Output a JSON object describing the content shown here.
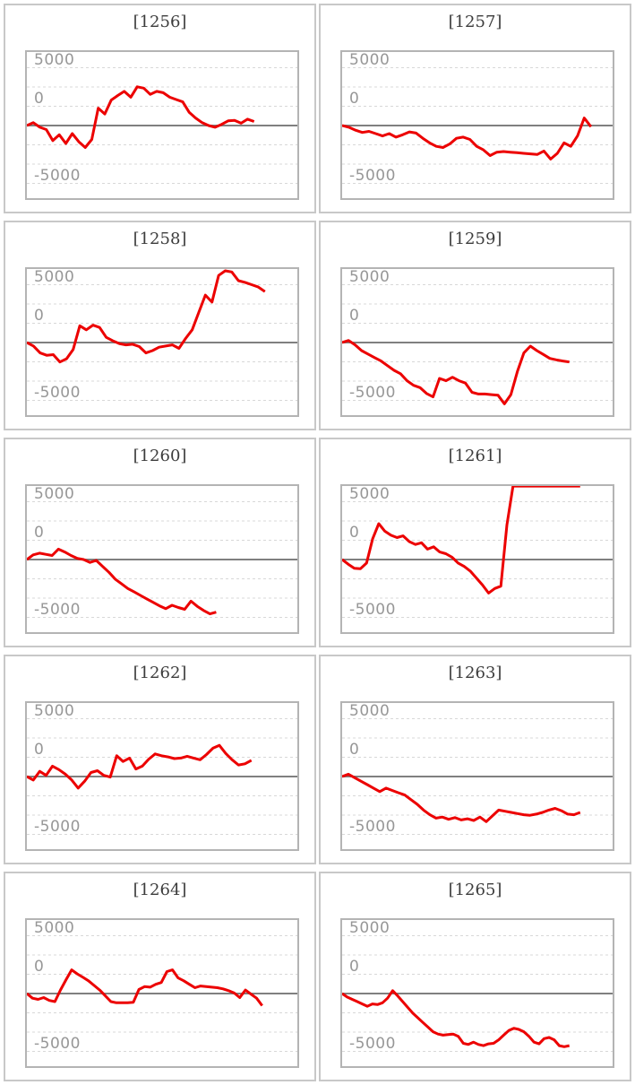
{
  "page": {
    "background": "#ffffff"
  },
  "style": {
    "line_color": "#ec0000",
    "zero_line_color": "#808080",
    "gridline_color": "#d8d8d8",
    "plot_border_color": "#b4b4b4",
    "tile_border_color": "#c8c8c8",
    "title_color": "#3c3c3c",
    "tick_label_color": "#979797"
  },
  "axis": {
    "tick_labels": [
      "5000",
      "0",
      "-5000"
    ]
  },
  "chart_data": [
    {
      "type": "line",
      "title": "[1256]",
      "machine_no": "1256",
      "xlabel": "",
      "ylabel": "",
      "grid": true,
      "legend": "none",
      "ylim": [
        -6350,
        6350
      ],
      "yticks": [
        5000,
        0,
        -5000
      ],
      "x_end_fraction": 0.84,
      "values": [
        0,
        250,
        -150,
        -350,
        -1300,
        -800,
        -1550,
        -700,
        -1400,
        -1900,
        -1200,
        1500,
        1000,
        2200,
        2600,
        2950,
        2450,
        3350,
        3230,
        2700,
        2950,
        2840,
        2450,
        2250,
        2050,
        1150,
        650,
        250,
        0,
        -150,
        100,
        400,
        450,
        200,
        550,
        350
      ]
    },
    {
      "type": "line",
      "title": "[1257]",
      "machine_no": "1257",
      "xlabel": "",
      "ylabel": "",
      "grid": true,
      "legend": "none",
      "ylim": [
        -6350,
        6350
      ],
      "yticks": [
        5000,
        0,
        -5000
      ],
      "x_end_fraction": 0.92,
      "values": [
        0,
        -150,
        -400,
        -600,
        -500,
        -700,
        -900,
        -700,
        -1000,
        -800,
        -550,
        -650,
        -1100,
        -1500,
        -1800,
        -1900,
        -1600,
        -1100,
        -1000,
        -1200,
        -1800,
        -2100,
        -2600,
        -2300,
        -2250,
        -2300,
        -2350,
        -2400,
        -2450,
        -2500,
        -2200,
        -2900,
        -2400,
        -1500,
        -1800,
        -900,
        650,
        -100
      ]
    },
    {
      "type": "line",
      "title": "[1258]",
      "machine_no": "1258",
      "xlabel": "",
      "ylabel": "",
      "grid": true,
      "legend": "none",
      "ylim": [
        -6350,
        6350
      ],
      "yticks": [
        5000,
        0,
        -5000
      ],
      "x_end_fraction": 0.88,
      "values": [
        0,
        -300,
        -900,
        -1100,
        -1050,
        -1680,
        -1400,
        -600,
        1450,
        1100,
        1500,
        1300,
        450,
        150,
        -100,
        -200,
        -150,
        -350,
        -900,
        -700,
        -400,
        -300,
        -200,
        -500,
        350,
        1100,
        2600,
        4100,
        3500,
        5800,
        6200,
        6100,
        5350,
        5200,
        5000,
        4800,
        4400
      ]
    },
    {
      "type": "line",
      "title": "[1259]",
      "machine_no": "1259",
      "xlabel": "",
      "ylabel": "",
      "grid": true,
      "legend": "none",
      "ylim": [
        -6350,
        6350
      ],
      "yticks": [
        5000,
        0,
        -5000
      ],
      "x_end_fraction": 0.84,
      "values": [
        0,
        180,
        -200,
        -700,
        -1000,
        -1300,
        -1600,
        -2000,
        -2400,
        -2700,
        -3300,
        -3700,
        -3900,
        -4400,
        -4700,
        -3100,
        -3300,
        -3000,
        -3300,
        -3500,
        -4300,
        -4450,
        -4450,
        -4500,
        -4550,
        -5300,
        -4500,
        -2500,
        -900,
        -310,
        -700,
        -1030,
        -1370,
        -1500,
        -1600,
        -1680
      ]
    },
    {
      "type": "line",
      "title": "[1260]",
      "machine_no": "1260",
      "xlabel": "",
      "ylabel": "",
      "grid": true,
      "legend": "none",
      "ylim": [
        -6350,
        6350
      ],
      "yticks": [
        5000,
        0,
        -5000
      ],
      "x_end_fraction": 0.7,
      "values": [
        0,
        400,
        550,
        450,
        350,
        900,
        650,
        350,
        100,
        0,
        -250,
        -80,
        -600,
        -1100,
        -1700,
        -2100,
        -2500,
        -2800,
        -3100,
        -3400,
        -3700,
        -4000,
        -4250,
        -3950,
        -4150,
        -4300,
        -3600,
        -4050,
        -4400,
        -4700,
        -4550
      ]
    },
    {
      "type": "line",
      "title": "[1261]",
      "machine_no": "1261",
      "xlabel": "",
      "ylabel": "",
      "grid": true,
      "legend": "none",
      "ylim": [
        -6350,
        6350
      ],
      "yticks": [
        5000,
        0,
        -5000
      ],
      "x_end_fraction": 0.88,
      "values": [
        0,
        -400,
        -750,
        -800,
        -300,
        1800,
        3100,
        2450,
        2100,
        1900,
        2050,
        1550,
        1300,
        1450,
        900,
        1100,
        650,
        500,
        200,
        -300,
        -600,
        -1000,
        -1600,
        -2200,
        -2900,
        -2500,
        -2300,
        3000,
        6350,
        6350,
        6350,
        6350,
        6350,
        6350,
        6350,
        6350,
        6350,
        6350,
        6350,
        6350
      ]
    },
    {
      "type": "line",
      "title": "[1262]",
      "machine_no": "1262",
      "xlabel": "",
      "ylabel": "",
      "grid": true,
      "legend": "none",
      "ylim": [
        -6350,
        6350
      ],
      "yticks": [
        5000,
        0,
        -5000
      ],
      "x_end_fraction": 0.83,
      "values": [
        0,
        -300,
        450,
        100,
        900,
        600,
        200,
        -300,
        -1000,
        -400,
        350,
        500,
        100,
        -50,
        1800,
        1300,
        1600,
        650,
        900,
        1500,
        1950,
        1800,
        1700,
        1550,
        1600,
        1750,
        1600,
        1450,
        1900,
        2450,
        2700,
        2000,
        1450,
        1000,
        1100,
        1400
      ]
    },
    {
      "type": "line",
      "title": "[1263]",
      "machine_no": "1263",
      "xlabel": "",
      "ylabel": "",
      "grid": true,
      "legend": "none",
      "ylim": [
        -6350,
        6350
      ],
      "yticks": [
        5000,
        0,
        -5000
      ],
      "x_end_fraction": 0.88,
      "values": [
        0,
        200,
        -100,
        -400,
        -700,
        -1000,
        -1300,
        -1000,
        -1200,
        -1400,
        -1600,
        -2000,
        -2400,
        -2900,
        -3300,
        -3600,
        -3500,
        -3700,
        -3550,
        -3750,
        -3650,
        -3800,
        -3500,
        -3900,
        -3400,
        -2900,
        -3000,
        -3100,
        -3200,
        -3300,
        -3350,
        -3250,
        -3100,
        -2900,
        -2750,
        -2950,
        -3250,
        -3300,
        -3100
      ]
    },
    {
      "type": "line",
      "title": "[1264]",
      "machine_no": "1264",
      "xlabel": "",
      "ylabel": "",
      "grid": true,
      "legend": "none",
      "ylim": [
        -6350,
        6350
      ],
      "yticks": [
        5000,
        0,
        -5000
      ],
      "x_end_fraction": 0.87,
      "values": [
        0,
        -400,
        -500,
        -350,
        -600,
        -700,
        300,
        1200,
        2050,
        1700,
        1400,
        1100,
        700,
        300,
        -200,
        -700,
        -800,
        -800,
        -800,
        -750,
        350,
        600,
        550,
        800,
        950,
        1900,
        2050,
        1350,
        1100,
        800,
        500,
        650,
        600,
        550,
        500,
        400,
        250,
        50,
        -350,
        300,
        -50,
        -400,
        -1050
      ]
    },
    {
      "type": "line",
      "title": "[1265]",
      "machine_no": "1265",
      "xlabel": "",
      "ylabel": "",
      "grid": true,
      "legend": "none",
      "ylim": [
        -6350,
        6350
      ],
      "yticks": [
        5000,
        0,
        -5000
      ],
      "x_end_fraction": 0.84,
      "values": [
        0,
        -300,
        -500,
        -700,
        -900,
        -1100,
        -900,
        -950,
        -800,
        -400,
        250,
        -200,
        -700,
        -1200,
        -1700,
        -2100,
        -2500,
        -2900,
        -3300,
        -3500,
        -3600,
        -3550,
        -3500,
        -3700,
        -4300,
        -4400,
        -4200,
        -4400,
        -4500,
        -4350,
        -4300,
        -4000,
        -3600,
        -3200,
        -3000,
        -3100,
        -3300,
        -3700,
        -4200,
        -4350,
        -3900,
        -3800,
        -4000,
        -4500,
        -4600,
        -4500
      ]
    }
  ]
}
